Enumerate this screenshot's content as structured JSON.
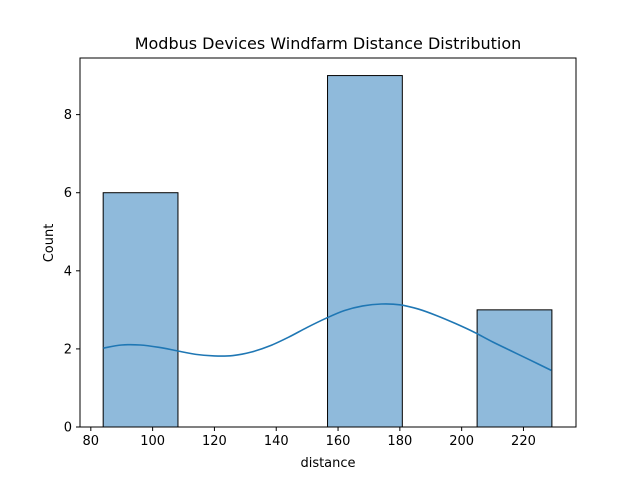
{
  "chart_data": {
    "type": "bar",
    "title": "Modbus Devices Windfarm Distance Distribution",
    "xlabel": "distance",
    "ylabel": "Count",
    "xlim": [
      76.5,
      237.0
    ],
    "ylim": [
      0,
      9.45
    ],
    "xticks": [
      80,
      100,
      120,
      140,
      160,
      180,
      200,
      220
    ],
    "yticks": [
      0,
      2,
      4,
      6,
      8
    ],
    "bins": [
      {
        "start": 84.0,
        "end": 108.2,
        "count": 6
      },
      {
        "start": 108.2,
        "end": 132.4,
        "count": 0
      },
      {
        "start": 132.4,
        "end": 156.6,
        "count": 0
      },
      {
        "start": 156.6,
        "end": 180.8,
        "count": 9
      },
      {
        "start": 180.8,
        "end": 205.0,
        "count": 0
      },
      {
        "start": 205.0,
        "end": 229.2,
        "count": 3
      }
    ],
    "kde": {
      "x": [
        84,
        90,
        96,
        102,
        108,
        114,
        120,
        126,
        132,
        138,
        144,
        150,
        156,
        162,
        168,
        174,
        180,
        186,
        192,
        198,
        204,
        210,
        216,
        222,
        229
      ],
      "y": [
        2.02,
        2.1,
        2.1,
        2.04,
        1.95,
        1.86,
        1.82,
        1.83,
        1.92,
        2.08,
        2.3,
        2.55,
        2.78,
        2.98,
        3.1,
        3.15,
        3.13,
        3.02,
        2.85,
        2.65,
        2.43,
        2.18,
        1.95,
        1.72,
        1.45
      ]
    },
    "grid": false,
    "colors": {
      "bar_fill": "#8fbadb",
      "bar_edge": "#000000",
      "kde_line": "#1f77b4"
    }
  }
}
